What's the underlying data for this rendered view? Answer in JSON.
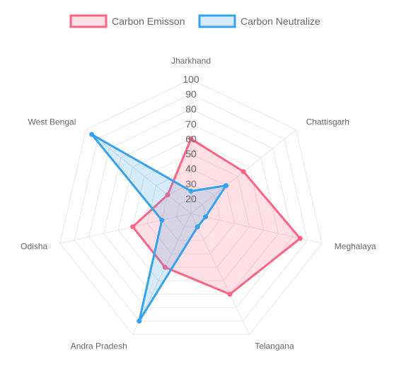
{
  "chart_data": {
    "type": "radar",
    "labels": [
      "Jharkhand",
      "Chattisgarh",
      "Meghalaya",
      "Telangana",
      "Andra Pradesh",
      "Odisha",
      "West Bengal"
    ],
    "series": [
      {
        "name": "Carbon Emisson",
        "values": [
          60,
          55,
          85,
          70,
          50,
          50,
          30
        ],
        "stroke": "#ff6384",
        "fill": "rgba(255,99,132,0.2)"
      },
      {
        "name": "Carbon Neutralize",
        "values": [
          25,
          40,
          20,
          20,
          90,
          30,
          95
        ],
        "stroke": "#36a2eb",
        "fill": "rgba(54,162,235,0.2)"
      }
    ],
    "r_ticks": [
      "20",
      "30",
      "40",
      "50",
      "60",
      "70",
      "80",
      "90",
      "100"
    ],
    "r_range": [
      10,
      100
    ],
    "legend_position": "top",
    "grid": true
  }
}
